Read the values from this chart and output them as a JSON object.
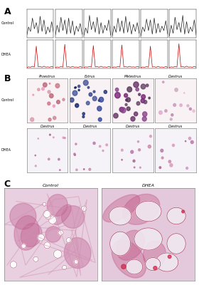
{
  "panel_A_label": "A",
  "panel_B_label": "B",
  "panel_C_label": "C",
  "control_label": "Control",
  "dhea_label": "DHEA",
  "background_color": "#ffffff",
  "panel_A": {
    "n_subplots": 6,
    "control_color": "#222222",
    "dhea_color": "#cc0000",
    "control_waves": [
      [
        0,
        1,
        0.5,
        2,
        0.8,
        1.5,
        0.3,
        2.2,
        0.5,
        1.8,
        0.2,
        1.0,
        0.4,
        1.6,
        0.3
      ],
      [
        0,
        1.2,
        0.4,
        2.1,
        0.6,
        1.8,
        0.2,
        2.0,
        0.3,
        1.7,
        0.1,
        1.1,
        0.5,
        1.4,
        0.2
      ],
      [
        0,
        0.9,
        0.3,
        2.3,
        0.7,
        1.6,
        0.4,
        2.1,
        0.2,
        1.5,
        0.3,
        1.2,
        0.6,
        1.8,
        0.1
      ],
      [
        0,
        1.1,
        0.4,
        2.0,
        0.5,
        1.7,
        0.3,
        2.2,
        0.4,
        1.6,
        0.2,
        1.3,
        0.5,
        1.5,
        0.3
      ],
      [
        0,
        1.0,
        0.5,
        1.9,
        0.6,
        1.8,
        0.2,
        2.0,
        0.3,
        1.4,
        0.4,
        1.1,
        0.6,
        1.7,
        0.2
      ],
      [
        0,
        1.2,
        0.3,
        2.1,
        0.7,
        1.5,
        0.4,
        2.3,
        0.2,
        1.6,
        0.3,
        1.0,
        0.5,
        1.8,
        0.1
      ]
    ],
    "dhea_waves": [
      [
        0,
        0.1,
        0.05,
        0.2,
        0.08,
        3.5,
        0.1,
        0.15,
        0.05,
        0.2,
        0.06,
        0.1,
        0.04,
        0.18,
        0.05
      ],
      [
        0,
        0.08,
        0.04,
        0.15,
        0.06,
        3.8,
        0.08,
        0.12,
        0.04,
        0.18,
        0.05,
        0.08,
        0.03,
        0.15,
        0.04
      ],
      [
        0,
        0.1,
        0.06,
        0.18,
        0.07,
        3.6,
        0.09,
        0.14,
        0.05,
        0.2,
        0.06,
        0.09,
        0.04,
        0.16,
        0.05
      ],
      [
        0,
        0.09,
        0.05,
        0.16,
        0.08,
        3.7,
        0.1,
        0.13,
        0.06,
        0.19,
        0.07,
        0.1,
        0.05,
        0.17,
        0.06
      ],
      [
        0,
        0.08,
        0.04,
        0.14,
        0.06,
        3.5,
        0.08,
        0.12,
        0.04,
        0.18,
        0.05,
        0.08,
        0.03,
        0.15,
        0.04
      ],
      [
        0,
        0.1,
        0.05,
        0.17,
        0.07,
        3.9,
        0.09,
        0.15,
        0.05,
        0.21,
        0.06,
        0.09,
        0.04,
        0.18,
        0.05
      ]
    ]
  },
  "panel_B": {
    "control_labels": [
      "Proestrus",
      "Estrus",
      "Metestrus",
      "Diestrus"
    ],
    "dhea_labels": [
      "Diestrus",
      "Diestrus",
      "Diestrus",
      "Diestrus"
    ]
  },
  "panel_C": {
    "control_title": "Control",
    "dhea_title": "DHEA"
  }
}
